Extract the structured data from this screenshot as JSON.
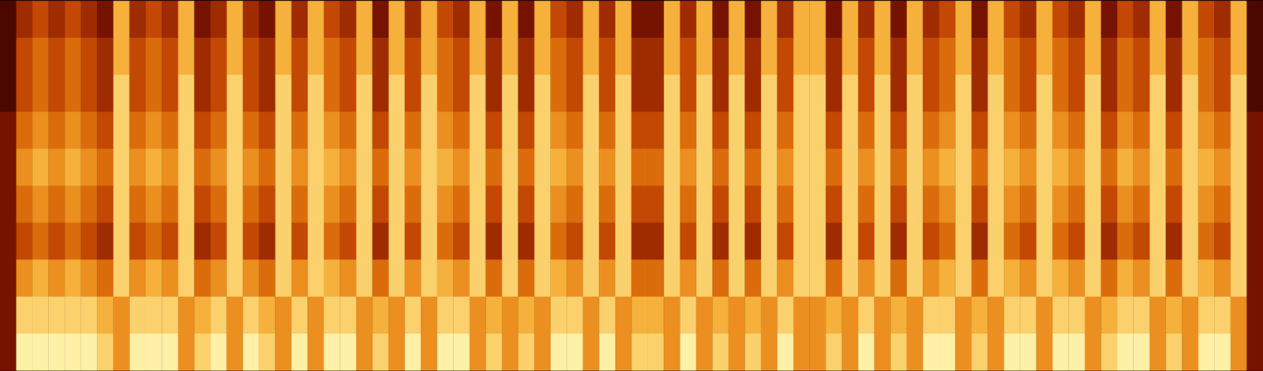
{
  "chart_data": {
    "type": "heatmap",
    "tick_labels": false,
    "zlim": [
      0,
      9
    ],
    "cells": [
      [
        1,
        3,
        4,
        3,
        4,
        3,
        2,
        7,
        3,
        4,
        3,
        7,
        2,
        3,
        7,
        3,
        2,
        7,
        3,
        7,
        4,
        3,
        7,
        2,
        7,
        3,
        7,
        4,
        3,
        7,
        2,
        7,
        2,
        7,
        4,
        3,
        7,
        3,
        7,
        2,
        2,
        7,
        3,
        7,
        2,
        7,
        2,
        7,
        3,
        7,
        7,
        2,
        7,
        3,
        7,
        2,
        7,
        3,
        4,
        7,
        2,
        7,
        4,
        3,
        7,
        4,
        3,
        7,
        2,
        4,
        3,
        7,
        2,
        7,
        4,
        3,
        7,
        1
      ],
      [
        1,
        4,
        5,
        4,
        5,
        4,
        3,
        7,
        4,
        5,
        4,
        7,
        3,
        4,
        7,
        4,
        3,
        7,
        4,
        7,
        5,
        4,
        7,
        3,
        7,
        4,
        7,
        5,
        4,
        7,
        3,
        7,
        3,
        7,
        5,
        4,
        7,
        4,
        7,
        3,
        3,
        7,
        4,
        7,
        3,
        7,
        3,
        7,
        4,
        7,
        7,
        3,
        7,
        4,
        7,
        3,
        7,
        4,
        5,
        7,
        3,
        7,
        5,
        4,
        7,
        5,
        4,
        7,
        3,
        5,
        4,
        7,
        3,
        7,
        5,
        4,
        7,
        1
      ],
      [
        1,
        4,
        5,
        4,
        5,
        4,
        3,
        8,
        4,
        5,
        4,
        8,
        3,
        4,
        8,
        4,
        3,
        8,
        4,
        8,
        5,
        4,
        8,
        3,
        8,
        4,
        8,
        5,
        4,
        8,
        3,
        8,
        3,
        8,
        5,
        4,
        8,
        4,
        8,
        3,
        3,
        8,
        4,
        8,
        3,
        8,
        3,
        8,
        4,
        8,
        8,
        3,
        8,
        4,
        8,
        3,
        8,
        4,
        5,
        8,
        3,
        8,
        5,
        4,
        8,
        5,
        4,
        8,
        3,
        5,
        4,
        8,
        3,
        8,
        5,
        4,
        8,
        1
      ],
      [
        2,
        5,
        6,
        5,
        6,
        5,
        4,
        8,
        5,
        6,
        5,
        8,
        4,
        5,
        8,
        5,
        4,
        8,
        5,
        8,
        6,
        5,
        8,
        4,
        8,
        5,
        8,
        6,
        5,
        8,
        4,
        8,
        4,
        8,
        6,
        5,
        8,
        5,
        8,
        4,
        4,
        8,
        5,
        8,
        4,
        8,
        4,
        8,
        5,
        8,
        8,
        4,
        8,
        5,
        8,
        4,
        8,
        5,
        6,
        8,
        4,
        8,
        6,
        5,
        8,
        6,
        5,
        8,
        4,
        6,
        5,
        8,
        4,
        8,
        6,
        5,
        8,
        2
      ],
      [
        2,
        6,
        7,
        6,
        7,
        6,
        5,
        8,
        6,
        7,
        6,
        8,
        5,
        6,
        8,
        6,
        5,
        8,
        6,
        8,
        7,
        6,
        8,
        5,
        8,
        6,
        8,
        7,
        6,
        8,
        5,
        8,
        5,
        8,
        7,
        6,
        8,
        6,
        8,
        5,
        5,
        8,
        6,
        8,
        5,
        8,
        5,
        8,
        6,
        8,
        8,
        5,
        8,
        6,
        8,
        5,
        8,
        6,
        7,
        8,
        5,
        8,
        7,
        6,
        8,
        7,
        6,
        8,
        5,
        7,
        6,
        8,
        5,
        8,
        7,
        6,
        8,
        2
      ],
      [
        2,
        5,
        6,
        5,
        6,
        5,
        4,
        8,
        5,
        6,
        5,
        8,
        4,
        5,
        8,
        5,
        4,
        8,
        5,
        8,
        6,
        5,
        8,
        4,
        8,
        5,
        8,
        6,
        5,
        8,
        4,
        8,
        4,
        8,
        6,
        5,
        8,
        5,
        8,
        4,
        4,
        8,
        5,
        8,
        4,
        8,
        4,
        8,
        5,
        8,
        8,
        4,
        8,
        5,
        8,
        4,
        8,
        5,
        6,
        8,
        4,
        8,
        6,
        5,
        8,
        6,
        5,
        8,
        4,
        6,
        5,
        8,
        4,
        8,
        6,
        5,
        8,
        2
      ],
      [
        2,
        4,
        5,
        4,
        5,
        4,
        3,
        8,
        4,
        5,
        4,
        8,
        3,
        4,
        8,
        4,
        3,
        8,
        4,
        8,
        5,
        4,
        8,
        3,
        8,
        4,
        8,
        5,
        4,
        8,
        3,
        8,
        3,
        8,
        5,
        4,
        8,
        4,
        8,
        3,
        3,
        8,
        4,
        8,
        3,
        8,
        3,
        8,
        4,
        8,
        8,
        3,
        8,
        4,
        8,
        3,
        8,
        4,
        5,
        8,
        3,
        8,
        5,
        4,
        8,
        5,
        4,
        8,
        3,
        5,
        4,
        8,
        3,
        8,
        5,
        4,
        8,
        2
      ],
      [
        2,
        6,
        7,
        6,
        7,
        6,
        5,
        8,
        6,
        7,
        6,
        8,
        5,
        6,
        8,
        6,
        5,
        8,
        6,
        8,
        7,
        6,
        8,
        5,
        8,
        6,
        8,
        7,
        6,
        8,
        5,
        8,
        5,
        8,
        7,
        6,
        8,
        6,
        8,
        5,
        5,
        8,
        6,
        8,
        5,
        8,
        5,
        8,
        6,
        8,
        8,
        5,
        8,
        6,
        8,
        5,
        8,
        6,
        7,
        8,
        5,
        8,
        7,
        6,
        8,
        7,
        6,
        8,
        5,
        7,
        6,
        8,
        5,
        8,
        7,
        6,
        8,
        2
      ],
      [
        2,
        8,
        8,
        8,
        8,
        8,
        7,
        6,
        8,
        8,
        8,
        6,
        7,
        8,
        6,
        8,
        7,
        6,
        8,
        6,
        8,
        8,
        6,
        7,
        6,
        8,
        6,
        8,
        8,
        6,
        7,
        6,
        7,
        6,
        8,
        8,
        6,
        8,
        6,
        7,
        7,
        6,
        8,
        6,
        7,
        6,
        7,
        6,
        8,
        6,
        6,
        7,
        6,
        8,
        6,
        7,
        6,
        8,
        8,
        6,
        7,
        6,
        8,
        8,
        6,
        8,
        8,
        6,
        7,
        8,
        8,
        6,
        7,
        6,
        8,
        8,
        6,
        2
      ],
      [
        2,
        9,
        9,
        9,
        9,
        9,
        8,
        6,
        9,
        9,
        9,
        6,
        8,
        9,
        6,
        9,
        8,
        6,
        9,
        6,
        9,
        9,
        6,
        8,
        6,
        9,
        6,
        9,
        9,
        6,
        8,
        6,
        8,
        6,
        9,
        9,
        6,
        9,
        6,
        8,
        8,
        6,
        9,
        6,
        8,
        6,
        8,
        6,
        9,
        6,
        6,
        8,
        6,
        9,
        6,
        8,
        6,
        9,
        9,
        6,
        8,
        6,
        9,
        9,
        6,
        9,
        9,
        6,
        8,
        9,
        9,
        6,
        8,
        6,
        9,
        9,
        6,
        2
      ]
    ]
  }
}
